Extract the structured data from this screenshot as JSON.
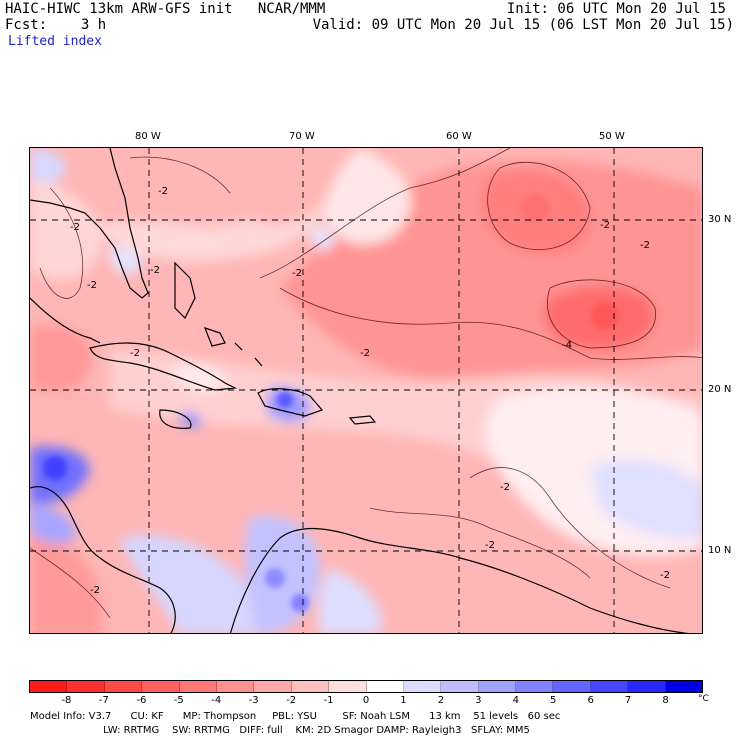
{
  "header": {
    "title": "HAIC-HIWC 13km ARW-GFS init   NCAR/MMM",
    "fcst": "Fcst:    3 h",
    "field": "Lifted index",
    "init": "Init: 06 UTC Mon 20 Jul 15",
    "valid": "Valid: 09 UTC Mon 20 Jul 15 (06 LST Mon 20 Jul 15)"
  },
  "map": {
    "lon_labels": [
      "80 W",
      "70 W",
      "60 W",
      "50 W"
    ],
    "lat_labels": [
      "30 N",
      "20 N",
      "10 N"
    ],
    "contour_labels": [
      "-2",
      "-2",
      "-2",
      "-2",
      "-2",
      "-2",
      "-2",
      "-2",
      "-4",
      "-2",
      "-2",
      "-2",
      "-2",
      "-2"
    ]
  },
  "colorbar": {
    "ticks": [
      "-8",
      "-7",
      "-6",
      "-5",
      "-4",
      "-3",
      "-2",
      "-1",
      "0",
      "1",
      "2",
      "3",
      "4",
      "5",
      "6",
      "7",
      "8"
    ],
    "unit": "°C",
    "colors": [
      "#ff1a1a",
      "#ff3030",
      "#ff4848",
      "#ff6060",
      "#ff7878",
      "#ff9090",
      "#ffa8a8",
      "#ffc0c0",
      "#ffdede",
      "#ffffff",
      "#dcdcff",
      "#bebeff",
      "#a0a0ff",
      "#8282ff",
      "#6464ff",
      "#4646ff",
      "#2828ff",
      "#0000e6"
    ]
  },
  "footer": {
    "line1": "Model Info: V3.7      CU: KF      MP: Thompson     PBL: YSU        SF: Noah LSM      13 km    51 levels   60 sec",
    "line2": "                       LW: RRTMG    SW: RRTMG   DIFF: full    KM: 2D Smagor DAMP: Rayleigh3   SFLAY: MM5"
  }
}
